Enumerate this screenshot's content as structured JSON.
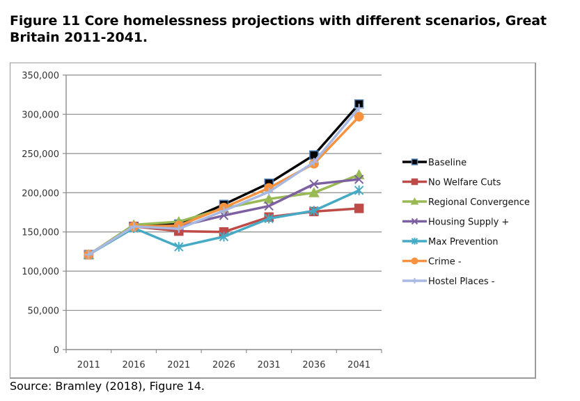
{
  "figure": {
    "title": "Figure 11 Core homelessness projections with different scenarios, Great Britain 2011-2041.",
    "source": "Source: Bramley (2018), Figure 14."
  },
  "chart_data": {
    "type": "line",
    "title": "Figure 11 Core homelessness projections with different scenarios, Great Britain 2011-2041.",
    "xlabel": "",
    "ylabel": "",
    "x": [
      "2011",
      "2016",
      "2021",
      "2026",
      "2031",
      "2036",
      "2041"
    ],
    "ylim": [
      0,
      350000
    ],
    "yticks": [
      0,
      50000,
      100000,
      150000,
      200000,
      250000,
      300000,
      350000
    ],
    "ytick_labels": [
      "0",
      "50,000",
      "100,000",
      "150,000",
      "200,000",
      "250,000",
      "300,000",
      "350,000"
    ],
    "grid": "horizontal",
    "legend_position": "right",
    "series": [
      {
        "name": "Baseline",
        "color": "#000000",
        "marker": "square",
        "marker_fill": "#000000",
        "marker_edge": "#4a7ebb",
        "values": [
          121000,
          157000,
          160000,
          185000,
          212000,
          248000,
          313000
        ]
      },
      {
        "name": "No Welfare Cuts",
        "color": "#be4b48",
        "marker": "square",
        "marker_fill": "#be4b48",
        "marker_edge": "#be4b48",
        "values": [
          121000,
          157000,
          151000,
          150000,
          169000,
          176000,
          180000
        ]
      },
      {
        "name": "Regional Convergence",
        "color": "#98b954",
        "marker": "triangle",
        "marker_fill": "#98b954",
        "marker_edge": "#98b954",
        "values": [
          121000,
          159000,
          163000,
          180000,
          192000,
          200000,
          223000
        ]
      },
      {
        "name": "Housing Supply +",
        "color": "#7d60a0",
        "marker": "x",
        "marker_fill": "#7d60a0",
        "marker_edge": "#7d60a0",
        "values": [
          121000,
          157000,
          157000,
          171000,
          183000,
          211000,
          217000
        ]
      },
      {
        "name": "Max Prevention",
        "color": "#46aac5",
        "marker": "star",
        "marker_fill": "#46aac5",
        "marker_edge": "#46aac5",
        "values": [
          121000,
          155000,
          131000,
          144000,
          167000,
          177000,
          203000
        ]
      },
      {
        "name": "Crime -",
        "color": "#f69240",
        "marker": "circle",
        "marker_fill": "#f69240",
        "marker_edge": "#f69240",
        "values": [
          121000,
          157000,
          158000,
          181000,
          206000,
          237000,
          297000
        ]
      },
      {
        "name": "Hostel Places -",
        "color": "#a7b9e3",
        "marker": "plus",
        "marker_fill": "#a7b9e3",
        "marker_edge": "#a7b9e3",
        "values": [
          121000,
          157000,
          154000,
          177000,
          201000,
          239000,
          308000
        ]
      }
    ]
  }
}
